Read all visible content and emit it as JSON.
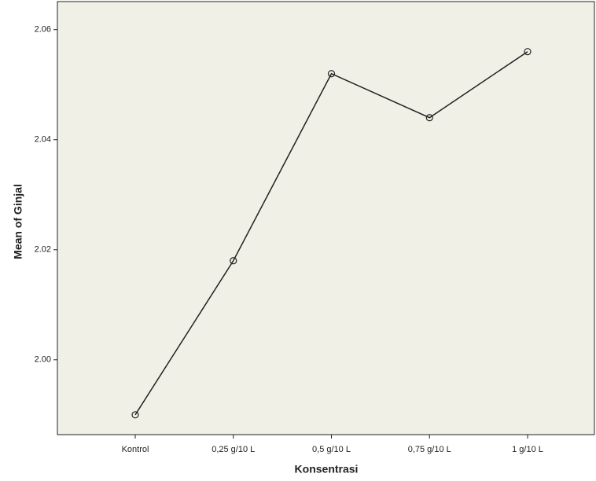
{
  "chart_data": {
    "type": "line",
    "x_label": "Konsentrasi",
    "y_label": "Mean of Ginjal",
    "categories": [
      "Kontrol",
      "0,25 g/10 L",
      "0,5 g/10 L",
      "0,75 g/10 L",
      "1 g/10 L"
    ],
    "values": [
      1.99,
      2.018,
      2.052,
      2.044,
      2.056
    ],
    "color": "#222222",
    "ylim": [
      1.9864,
      2.0651
    ],
    "yticks": [
      {
        "value": 2,
        "label": "2.00"
      },
      2.02,
      2.04,
      2.06
    ]
  }
}
